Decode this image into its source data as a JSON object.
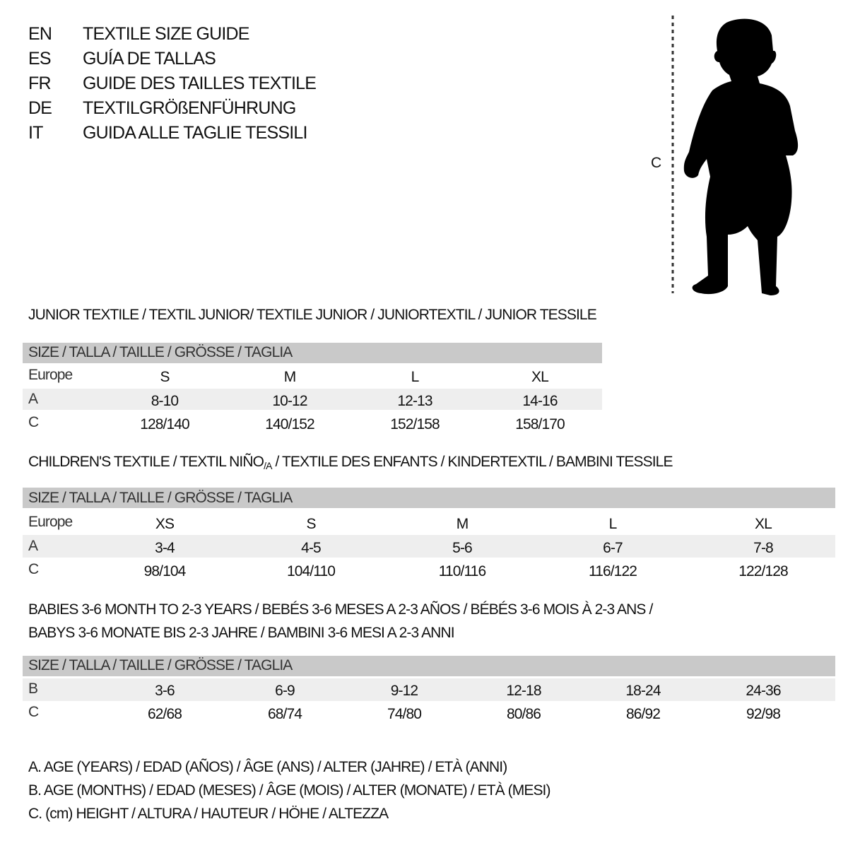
{
  "titles": [
    {
      "lang": "EN",
      "text": "TEXTILE SIZE GUIDE"
    },
    {
      "lang": "ES",
      "text": "GUÍA DE TALLAS"
    },
    {
      "lang": "FR",
      "text": "GUIDE DES TAILLES TEXTILE"
    },
    {
      "lang": "DE",
      "text": "TEXTILGRÖßENFÜHRUNG"
    },
    {
      "lang": "IT",
      "text": "GUIDA ALLE TAGLIE TESSILI"
    }
  ],
  "figure": {
    "measure_label": "C",
    "icon": "child-silhouette-icon"
  },
  "size_header": "SIZE / TALLA / TAILLE / GRÖSSE / TAGLIA",
  "junior": {
    "title": "JUNIOR TEXTILE / TEXTIL JUNIOR/ TEXTILE JUNIOR / JUNIORTEXTIL / JUNIOR TESSILE",
    "rows": [
      {
        "label": "Europe",
        "values": [
          "S",
          "M",
          "L",
          "XL"
        ]
      },
      {
        "label": "A",
        "values": [
          "8-10",
          "10-12",
          "12-13",
          "14-16"
        ]
      },
      {
        "label": "C",
        "values": [
          "128/140",
          "140/152",
          "152/158",
          "158/170"
        ]
      }
    ]
  },
  "children": {
    "title": "CHILDREN'S TEXTILE / TEXTIL NIÑO",
    "title_sub": "/A",
    "title_rest": " / TEXTILE DES ENFANTS / KINDERTEXTIL / BAMBINI TESSILE",
    "rows": [
      {
        "label": "Europe",
        "values": [
          "XS",
          "S",
          "M",
          "L",
          "XL"
        ]
      },
      {
        "label": "A",
        "values": [
          "3-4",
          "4-5",
          "5-6",
          "6-7",
          "7-8"
        ]
      },
      {
        "label": "C",
        "values": [
          "98/104",
          "104/110",
          "110/116",
          "116/122",
          "122/128"
        ]
      }
    ]
  },
  "babies": {
    "title_line1": "BABIES 3-6 MONTH TO 2-3 YEARS / BEBÉS 3-6 MESES A 2-3 AÑOS / BÉBÉS 3-6 MOIS À 2-3 ANS /",
    "title_line2": "BABYS 3-6 MONATE BIS 2-3 JAHRE / BAMBINI 3-6 MESI A 2-3 ANNI",
    "rows": [
      {
        "label": "B",
        "values": [
          "3-6",
          "6-9",
          "9-12",
          "12-18",
          "18-24",
          "24-36"
        ]
      },
      {
        "label": "C",
        "values": [
          "62/68",
          "68/74",
          "74/80",
          "80/86",
          "86/92",
          "92/98"
        ]
      }
    ]
  },
  "legend": [
    "A. AGE (YEARS) / EDAD (AÑOS) / ÂGE (ANS) / ALTER (JAHRE) / ETÀ (ANNI)",
    "B. AGE (MONTHS) / EDAD (MESES) / ÂGE (MOIS) / ALTER (MONATE) / ETÀ (MESI)",
    "C. (cm) HEIGHT / ALTURA / HAUTEUR / HÖHE / ALTEZZA"
  ],
  "colors": {
    "header_bg": "#c9c9c9",
    "alt_row_bg": "#eeeeee",
    "text": "#111111"
  }
}
